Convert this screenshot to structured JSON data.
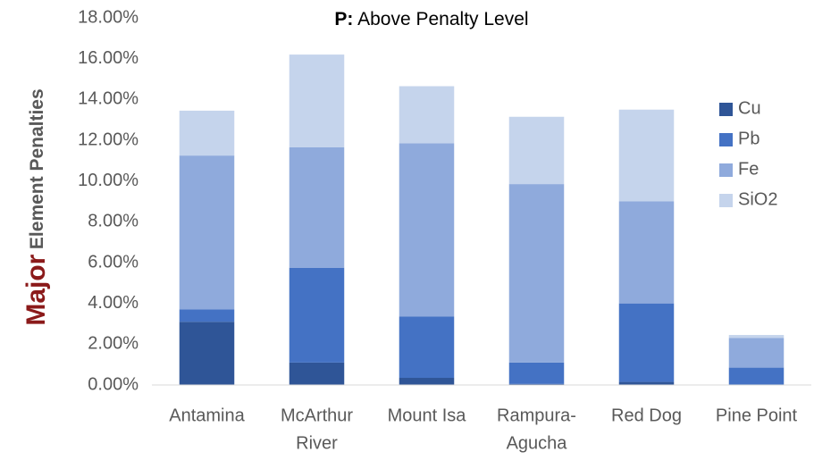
{
  "chart_data": {
    "type": "stacked_bar",
    "title": {
      "key": "P:",
      "text": "Above Penalty Level"
    },
    "ylabel": [
      "Major",
      "Element Penalties"
    ],
    "categories": [
      [
        "Antamina"
      ],
      [
        "McArthur",
        "River"
      ],
      [
        "Mount Isa"
      ],
      [
        "Rampura-",
        "Agucha"
      ],
      [
        "Red Dog"
      ],
      [
        "Pine Point"
      ]
    ],
    "series": [
      {
        "name": "Cu",
        "color": "#2f5597",
        "values": [
          3.1,
          1.1,
          0.35,
          0.05,
          0.15,
          0.0
        ]
      },
      {
        "name": "Pb",
        "color": "#4472c4",
        "values": [
          0.6,
          4.65,
          3.0,
          1.05,
          3.85,
          0.85
        ]
      },
      {
        "name": "Fe",
        "color": "#8faadc",
        "values": [
          7.55,
          5.9,
          8.5,
          8.75,
          5.0,
          1.45
        ]
      },
      {
        "name": "SiO2",
        "color": "#c5d4ec",
        "values": [
          2.2,
          4.55,
          2.8,
          3.3,
          4.5,
          0.15
        ]
      }
    ],
    "ylim": [
      0,
      18
    ],
    "yticks": [
      {
        "value": 0,
        "label": "0.00%"
      },
      {
        "value": 2,
        "label": "2.00%"
      },
      {
        "value": 4,
        "label": "4.00%"
      },
      {
        "value": 6,
        "label": "6.00%"
      },
      {
        "value": 8,
        "label": "8.00%"
      },
      {
        "value": 10,
        "label": "10.00%"
      },
      {
        "value": 12,
        "label": "12.00%"
      },
      {
        "value": 14,
        "label": "14.00%"
      },
      {
        "value": 16,
        "label": "16.00%"
      },
      {
        "value": 18,
        "label": "18.00%"
      }
    ],
    "grid": false,
    "legend": "right"
  }
}
